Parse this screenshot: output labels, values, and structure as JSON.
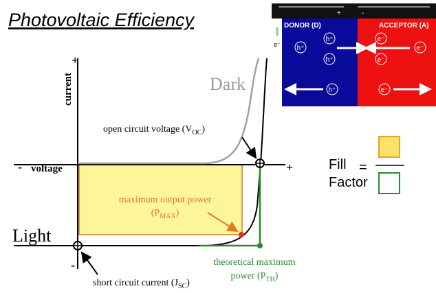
{
  "title": "Photovoltaic Efficiency",
  "axes": {
    "y_label": "current",
    "x_label": "voltage",
    "y_plus": "+",
    "y_minus": "-",
    "x_plus": "+",
    "x_minus": "-"
  },
  "curves": {
    "dark": "Dark",
    "light": "Light"
  },
  "annotations": {
    "open_circuit": {
      "text": "open circuit voltage (V",
      "sub": "OC",
      "close": ")"
    },
    "max_power": {
      "line1": "maximum output power",
      "text": "(P",
      "sub": "MAX",
      "close": ")"
    },
    "theoretical": {
      "line1": "theoretical maximum",
      "text": "power (P",
      "sub": "TH",
      "close": ")"
    },
    "short_circuit": {
      "text": "short circuit current (J",
      "sub": "SC",
      "close": ")"
    }
  },
  "fill_factor": {
    "top": "Fill",
    "bottom": "Factor",
    "equals": "="
  },
  "inset": {
    "terminal_plus": "+",
    "terminal_minus": "-",
    "electron_out": "e⁻",
    "donor": "DONOR (D)",
    "acceptor": "ACCEPTOR (A)",
    "holes": [
      "h⁺",
      "h⁺",
      "h⁺",
      "h⁺"
    ],
    "electrons": [
      "e⁻",
      "e⁻",
      "e⁻",
      "e⁻"
    ]
  }
}
